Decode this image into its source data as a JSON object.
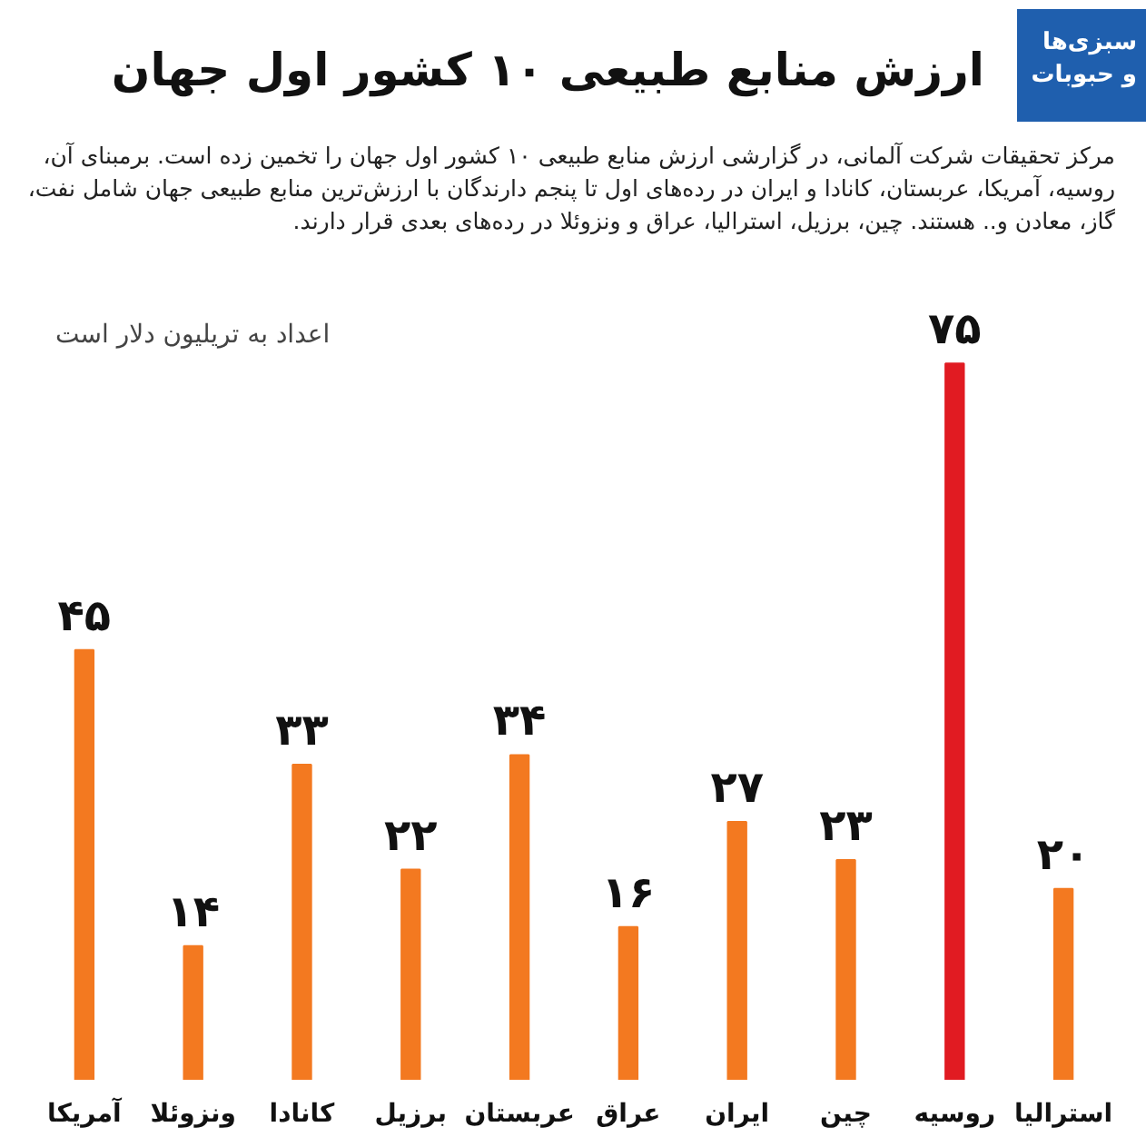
{
  "chart_data": {
    "type": "bar",
    "title": "ارزش منابع طبیعی ۱۰ کشور اول جهان",
    "subtitle": "مرکز تحقیقات شرکت آلمانی، در گزارشی ارزش منابع طبیعی ۱۰ کشور اول جهان را تخمین زده است. برمبنای آن، روسیه، آمریکا، عربستان، کانادا و ایران در رده‌های اول تا پنجم دارندگان با ارزش‌ترین منابع طبیعی جهان شامل نفت، گاز، معادن و.. هستند. چین، برزیل، استرالیا، عراق و ونزوئلا در رده‌های بعدی قرار دارند.",
    "annotations": [
      "اعداد به تریلیون دلار است",
      "سبزی‌ها و حبوبات"
    ],
    "categories": [
      "آمریکا",
      "ونزوئلا",
      "کانادا",
      "برزیل",
      "عربستان",
      "عراق",
      "ایران",
      "چین",
      "روسیه",
      "استرالیا"
    ],
    "values": [
      45,
      14,
      33,
      22,
      34,
      16,
      27,
      23,
      75,
      20
    ],
    "colors": [
      "#f37920",
      "#f37920",
      "#f37920",
      "#f37920",
      "#f37920",
      "#f37920",
      "#f37920",
      "#f37920",
      "#e11b22",
      "#f37920"
    ],
    "value_labels": [
      "۴۵",
      "۱۴",
      "۳۳",
      "۲۲",
      "۳۴",
      "۱۶",
      "۲۷",
      "۲۳",
      "۷۵",
      "۲۰"
    ],
    "tick_labels": "x",
    "grid": false
  }
}
